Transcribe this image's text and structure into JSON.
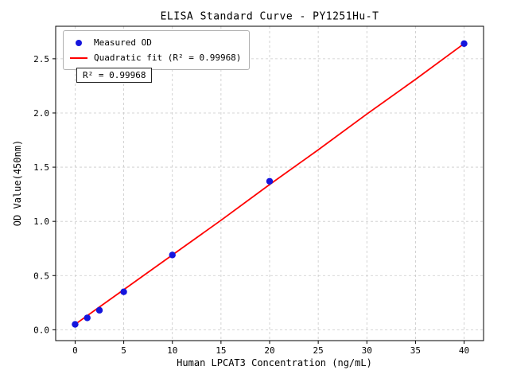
{
  "chart_data": {
    "type": "scatter",
    "title": "ELISA Standard Curve - PY1251Hu-T",
    "xlabel": "Human LPCAT3 Concentration (ng/mL)",
    "ylabel": "OD Value(450nm)",
    "xlim": [
      -2,
      42
    ],
    "ylim": [
      -0.1,
      2.8
    ],
    "xticks": [
      0,
      5,
      10,
      15,
      20,
      25,
      30,
      35,
      40
    ],
    "yticks": [
      0.0,
      0.5,
      1.0,
      1.5,
      2.0,
      2.5
    ],
    "ytick_labels": [
      "0.0",
      "0.5",
      "1.0",
      "1.5",
      "2.0",
      "2.5"
    ],
    "grid": true,
    "legend_position": "upper-left",
    "annotation": "R² = 0.99968",
    "colors": {
      "points": "#1515dd",
      "fit_line": "#ff0000",
      "grid": "#c9c9c9",
      "axis": "#000000"
    },
    "series": [
      {
        "name": "Measured OD",
        "type": "scatter",
        "color": "#1515dd",
        "x": [
          0,
          1.25,
          2.5,
          5,
          10,
          20,
          40
        ],
        "y": [
          0.05,
          0.11,
          0.18,
          0.35,
          0.69,
          1.37,
          2.64
        ]
      },
      {
        "name": "Quadratic fit (R² = 0.99968)",
        "type": "line",
        "color": "#ff0000",
        "x": [
          0,
          5,
          10,
          15,
          20,
          25,
          30,
          35,
          40
        ],
        "y": [
          0.05,
          0.37,
          0.69,
          1.01,
          1.34,
          1.66,
          1.99,
          2.31,
          2.64
        ]
      }
    ]
  }
}
